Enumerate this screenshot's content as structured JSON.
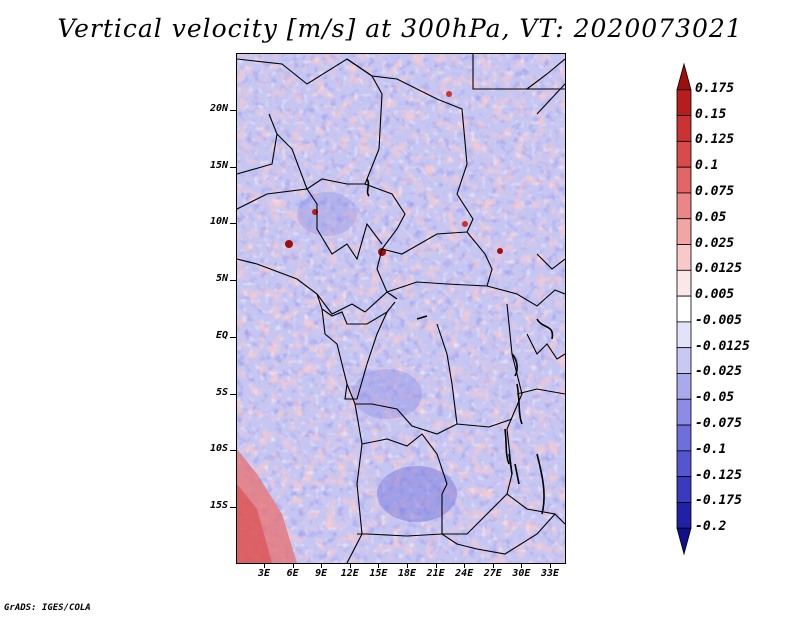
{
  "title": "Vertical velocity [m/s] at 300hPa, VT: 2020073021",
  "credit": "GrADS: IGES/COLA",
  "lat_axis": {
    "labels": [
      "20N",
      "15N",
      "10N",
      "5N",
      "EQ",
      "5S",
      "10S",
      "15S"
    ]
  },
  "lon_axis": {
    "labels": [
      "3E",
      "6E",
      "9E",
      "12E",
      "15E",
      "18E",
      "21E",
      "24E",
      "27E",
      "30E",
      "33E"
    ]
  },
  "colorbar": {
    "labels": [
      "0.175",
      "0.15",
      "0.125",
      "0.1",
      "0.075",
      "0.05",
      "0.025",
      "0.0125",
      "0.005",
      "-0.005",
      "-0.0125",
      "-0.025",
      "-0.05",
      "-0.075",
      "-0.1",
      "-0.125",
      "-0.175",
      "-0.2"
    ],
    "colors": [
      "#a00d0d",
      "#b81d1d",
      "#cc3232",
      "#d94a4a",
      "#e46565",
      "#ec8585",
      "#f3a5a5",
      "#f9c8c8",
      "#fde6e6",
      "#ffffff",
      "#e2e2fa",
      "#c8c8f4",
      "#a9a9ee",
      "#8c8ce6",
      "#6f6fdc",
      "#5555d0",
      "#3a3ac0",
      "#2121a8",
      "#10108a"
    ]
  },
  "map": {
    "field": "Vertical velocity",
    "units": "m/s",
    "level": "300hPa",
    "valid_time": "2020073021"
  }
}
